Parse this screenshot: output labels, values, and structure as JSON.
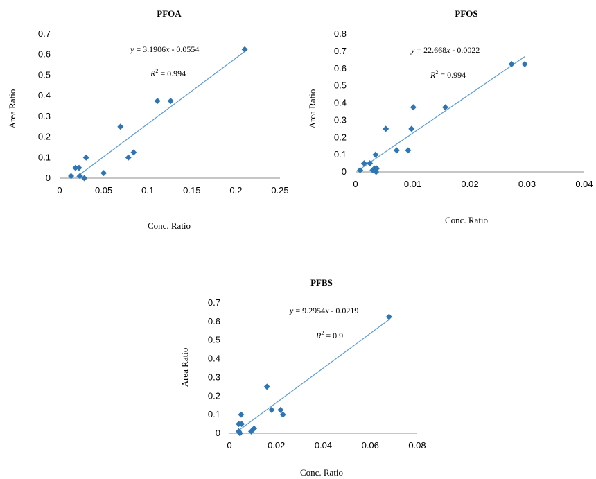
{
  "chart_data": [
    {
      "type": "scatter",
      "title": "PFOA",
      "xlabel": "Conc. Ratio",
      "ylabel": "Area Ratio",
      "xlim": [
        0,
        0.25
      ],
      "ylim": [
        0,
        0.7
      ],
      "xticks": [
        "0",
        "0.05",
        "0.1",
        "0.15",
        "0.2",
        "0.25"
      ],
      "yticks": [
        "0",
        "0.1",
        "0.2",
        "0.3",
        "0.4",
        "0.5",
        "0.6",
        "0.7"
      ],
      "points": [
        [
          0.013,
          0.01
        ],
        [
          0.018,
          0.05
        ],
        [
          0.022,
          0.05
        ],
        [
          0.023,
          0.01
        ],
        [
          0.028,
          0.0
        ],
        [
          0.03,
          0.1
        ],
        [
          0.05,
          0.025
        ],
        [
          0.069,
          0.25
        ],
        [
          0.078,
          0.1
        ],
        [
          0.084,
          0.125
        ],
        [
          0.111,
          0.375
        ],
        [
          0.126,
          0.375
        ],
        [
          0.21,
          0.625
        ]
      ],
      "trendline": {
        "slope": 3.1906,
        "intercept": -0.0554,
        "x_range": [
          0.018,
          0.21
        ]
      },
      "equation": {
        "prefix": "y",
        "text": " = 3.1906",
        "var": "x",
        "suffix": " - 0.0554"
      },
      "r2_label": "R",
      "r2_text": " = 0.994"
    },
    {
      "type": "scatter",
      "title": "PFOS",
      "xlabel": "Conc. Ratio",
      "ylabel": "Area Ratio",
      "xlim": [
        0,
        0.04
      ],
      "ylim": [
        0,
        0.8
      ],
      "xticks": [
        "0",
        "0.01",
        "0.02",
        "0.03",
        "0.04"
      ],
      "yticks": [
        "0",
        "0.1",
        "0.2",
        "0.3",
        "0.4",
        "0.5",
        "0.6",
        "0.7",
        "0.8"
      ],
      "points": [
        [
          0.0008,
          0.01
        ],
        [
          0.0015,
          0.05
        ],
        [
          0.0025,
          0.05
        ],
        [
          0.003,
          0.01
        ],
        [
          0.0033,
          0.02
        ],
        [
          0.0035,
          0.1
        ],
        [
          0.0036,
          0.0
        ],
        [
          0.0037,
          0.02
        ],
        [
          0.0053,
          0.25
        ],
        [
          0.0072,
          0.125
        ],
        [
          0.0092,
          0.125
        ],
        [
          0.0098,
          0.25
        ],
        [
          0.0101,
          0.375
        ],
        [
          0.0157,
          0.375
        ],
        [
          0.0273,
          0.625
        ],
        [
          0.0296,
          0.625
        ]
      ],
      "trendline": {
        "slope": 22.668,
        "intercept": -0.0022,
        "x_range": [
          0.0006,
          0.0296
        ]
      },
      "equation": {
        "prefix": "y",
        "text": " = 22.668",
        "var": "x",
        "suffix": " - 0.0022"
      },
      "r2_label": "R",
      "r2_text": " = 0.994"
    },
    {
      "type": "scatter",
      "title": "PFBS",
      "xlabel": "Conc. Ratio",
      "ylabel": "Area Ratio",
      "xlim": [
        0,
        0.08
      ],
      "ylim": [
        0,
        0.7
      ],
      "xticks": [
        "0",
        "0.02",
        "0.04",
        "0.06",
        "0.08"
      ],
      "yticks": [
        "0",
        "0.1",
        "0.2",
        "0.3",
        "0.4",
        "0.5",
        "0.6",
        "0.7"
      ],
      "points": [
        [
          0.004,
          0.05
        ],
        [
          0.004,
          0.01
        ],
        [
          0.0045,
          0.0
        ],
        [
          0.005,
          0.1
        ],
        [
          0.0052,
          0.05
        ],
        [
          0.0093,
          0.01
        ],
        [
          0.0105,
          0.025
        ],
        [
          0.016,
          0.25
        ],
        [
          0.018,
          0.125
        ],
        [
          0.0218,
          0.125
        ],
        [
          0.0228,
          0.1
        ],
        [
          0.068,
          0.625
        ]
      ],
      "trendline": {
        "slope": 9.2954,
        "intercept": -0.0219,
        "x_range": [
          0.004,
          0.068
        ]
      },
      "equation": {
        "prefix": "y",
        "text": " = 9.2954",
        "var": "x",
        "suffix": " - 0.0219"
      },
      "r2_label": "R",
      "r2_text": " = 0.9"
    }
  ]
}
